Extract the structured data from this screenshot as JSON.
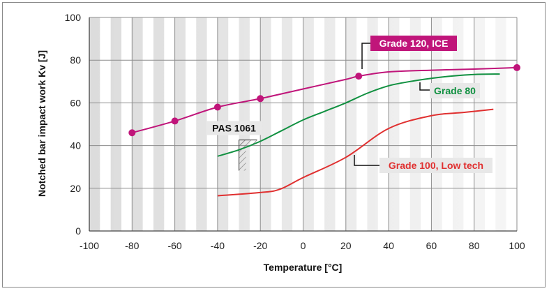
{
  "chart_data": {
    "type": "line",
    "xlabel": "Temperature [°C]",
    "ylabel": "Notched bar impact work Kv [J]",
    "xlim": [
      -100,
      100
    ],
    "ylim": [
      0,
      100
    ],
    "xticks": [
      -100,
      -80,
      -60,
      -40,
      -20,
      0,
      20,
      40,
      60,
      80,
      100
    ],
    "yticks": [
      0,
      20,
      40,
      60,
      80,
      100
    ],
    "grid": true,
    "series": [
      {
        "name": "Grade 120, ICE",
        "color": "#c0157a",
        "label_fill": "#c0157a",
        "label_text": "#ffffff",
        "markers": true,
        "x": [
          -80,
          -60,
          -40,
          -20,
          26,
          100
        ],
        "y": [
          46,
          51.5,
          58,
          62,
          72.5,
          76.5
        ],
        "curve": [
          [
            -80,
            46
          ],
          [
            -60,
            51.5
          ],
          [
            -40,
            58
          ],
          [
            -20,
            62
          ],
          [
            0,
            66.5
          ],
          [
            20,
            71
          ],
          [
            26,
            72.5
          ],
          [
            40,
            74.5
          ],
          [
            60,
            75.3
          ],
          [
            80,
            75.8
          ],
          [
            100,
            76.5
          ]
        ]
      },
      {
        "name": "Grade 80",
        "color": "#109040",
        "label_fill": "#e8e8e8",
        "label_text": "#109040",
        "markers": false,
        "x": [
          -40,
          -20,
          0,
          20,
          40,
          60,
          80,
          92
        ],
        "y": [
          35,
          42,
          52,
          60,
          68,
          71.5,
          73.3,
          73.5
        ],
        "curve": [
          [
            -40,
            35
          ],
          [
            -30,
            38
          ],
          [
            -20,
            42
          ],
          [
            -10,
            47
          ],
          [
            0,
            52
          ],
          [
            10,
            56
          ],
          [
            20,
            60
          ],
          [
            30,
            64.5
          ],
          [
            40,
            68
          ],
          [
            50,
            70
          ],
          [
            60,
            71.5
          ],
          [
            70,
            72.6
          ],
          [
            80,
            73.3
          ],
          [
            92,
            73.5
          ]
        ]
      },
      {
        "name": "Grade 100, Low tech",
        "color": "#e03030",
        "label_fill": "#e8e8e8",
        "label_text": "#e03030",
        "markers": false,
        "x": [
          -40,
          -20,
          -11,
          0,
          20,
          40,
          60,
          89
        ],
        "y": [
          16.5,
          18,
          19.5,
          25,
          34.5,
          48,
          54,
          57
        ],
        "curve": [
          [
            -40,
            16.5
          ],
          [
            -20,
            18
          ],
          [
            -11,
            19.5
          ],
          [
            0,
            25
          ],
          [
            20,
            34.5
          ],
          [
            40,
            48
          ],
          [
            60,
            54
          ],
          [
            75,
            55.5
          ],
          [
            89,
            57
          ]
        ]
      }
    ],
    "annotations": [
      {
        "name": "PAS 1061",
        "x": -30,
        "y": 42
      }
    ]
  }
}
